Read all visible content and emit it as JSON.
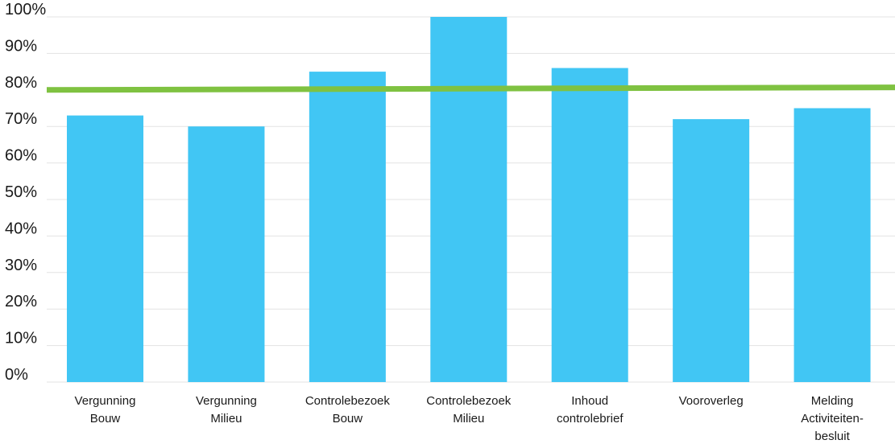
{
  "chart_data": {
    "type": "bar",
    "categories": [
      [
        "Vergunning",
        "Bouw"
      ],
      [
        "Vergunning",
        "Milieu"
      ],
      [
        "Controlebezoek",
        "Bouw"
      ],
      [
        "Controlebezoek",
        "Milieu"
      ],
      [
        "Inhoud",
        "controlebrief"
      ],
      [
        "Vooroverleg"
      ],
      [
        "Melding",
        "Activiteiten-",
        "besluit"
      ]
    ],
    "series": [
      {
        "values": [
          73,
          70,
          85,
          100,
          86,
          72,
          75
        ],
        "color": "#41c6f4"
      }
    ],
    "reference_line": {
      "start_value": 80,
      "end_value": 80.7,
      "color": "#7fc241"
    },
    "ylim": [
      0,
      100
    ],
    "yticks": [
      0,
      10,
      20,
      30,
      40,
      50,
      60,
      70,
      80,
      90,
      100
    ],
    "ytick_labels": [
      "0%",
      "10%",
      "20%",
      "30%",
      "40%",
      "50%",
      "60%",
      "70%",
      "80%",
      "90%",
      "100%"
    ],
    "grid": true,
    "legend": "none",
    "title": "",
    "xlabel": "",
    "ylabel": ""
  }
}
